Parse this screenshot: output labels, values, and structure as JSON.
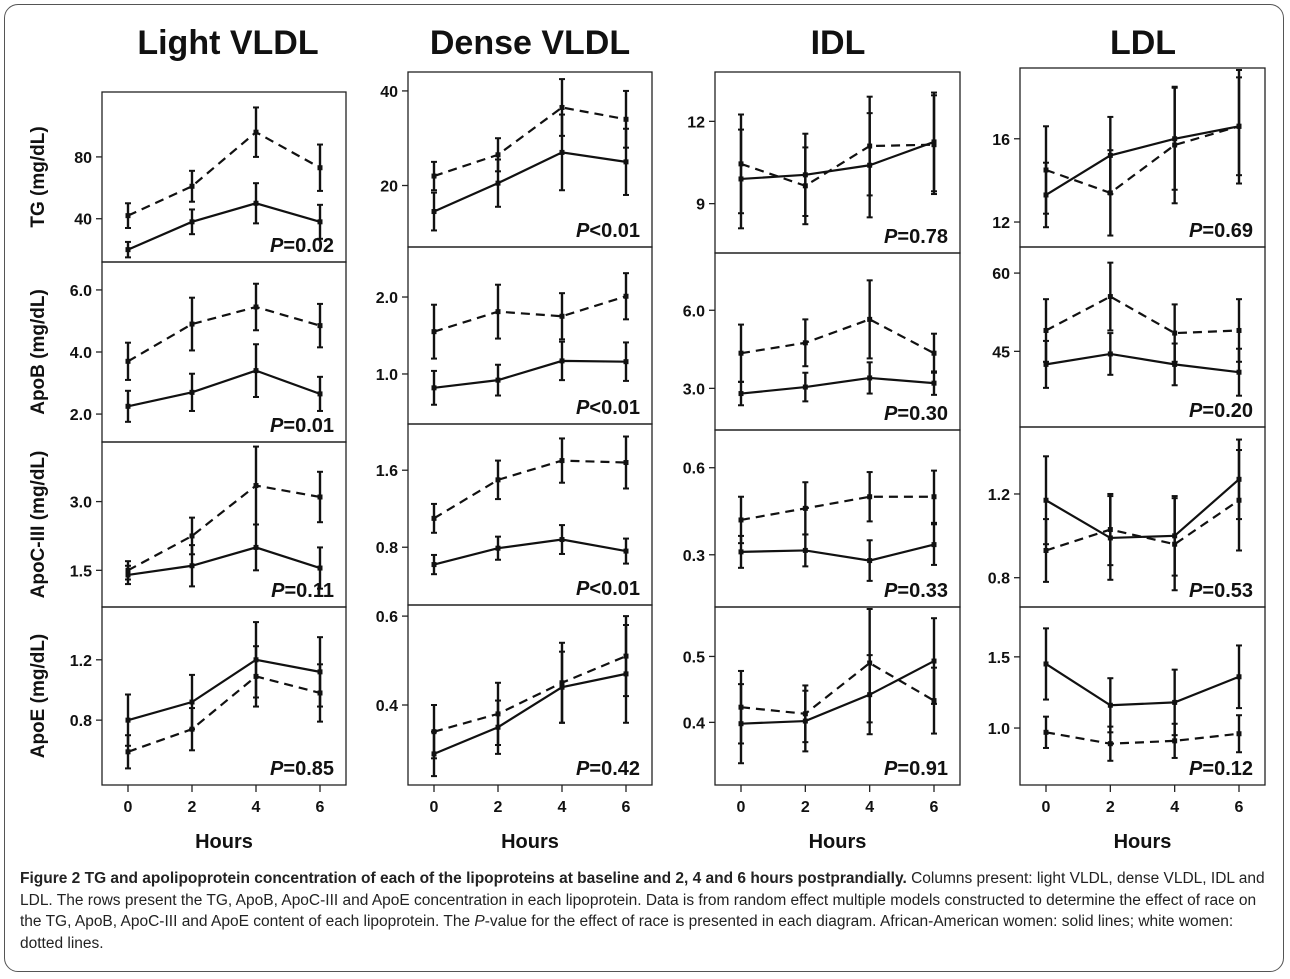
{
  "chart_data": {
    "type": "line",
    "columns": [
      "Light VLDL",
      "Dense VLDL",
      "IDL",
      "LDL"
    ],
    "rows": [
      "TG (mg/dL)",
      "ApoB (mg/dL)",
      "ApoC-III (mg/dL)",
      "ApoE (mg/dL)"
    ],
    "x": [
      0,
      2,
      4,
      6
    ],
    "xlabel": "Hours",
    "series_names": [
      "African-American women",
      "white women"
    ],
    "panels": [
      [
        {
          "row": 0,
          "col": 0,
          "ylim": [
            12,
            122
          ],
          "yticks": [
            40,
            80
          ],
          "solid": {
            "y": [
              20,
              38,
              50,
              38
            ],
            "err": [
              5,
              8,
              13,
              11
            ]
          },
          "dashed": {
            "y": [
              42,
              61,
              96,
              73
            ],
            "err": [
              8,
              10,
              16,
              15
            ]
          },
          "p": "=0.02"
        },
        {
          "row": 1,
          "col": 0,
          "ylim": [
            1.1,
            6.9
          ],
          "yticks": [
            2.0,
            4.0,
            6.0
          ],
          "solid": {
            "y": [
              2.25,
              2.7,
              3.4,
              2.65
            ],
            "err": [
              0.5,
              0.6,
              0.85,
              0.55
            ]
          },
          "dashed": {
            "y": [
              3.7,
              4.9,
              5.45,
              4.85
            ],
            "err": [
              0.6,
              0.85,
              0.75,
              0.7
            ]
          },
          "p": "=0.01"
        },
        {
          "row": 2,
          "col": 0,
          "ylim": [
            0.7,
            4.3
          ],
          "yticks": [
            1.5,
            3.0
          ],
          "solid": {
            "y": [
              1.4,
              1.6,
              2.0,
              1.55
            ],
            "err": [
              0.2,
              0.45,
              0.5,
              0.45
            ]
          },
          "dashed": {
            "y": [
              1.5,
              2.25,
              3.35,
              3.1
            ],
            "err": [
              0.2,
              0.4,
              0.85,
              0.55
            ]
          },
          "p": "=0.11"
        },
        {
          "row": 3,
          "col": 0,
          "ylim": [
            0.37,
            1.55
          ],
          "yticks": [
            0.8,
            1.2
          ],
          "solid": {
            "y": [
              0.8,
              0.92,
              1.2,
              1.12
            ],
            "err": [
              0.17,
              0.18,
              0.25,
              0.23
            ]
          },
          "dashed": {
            "y": [
              0.59,
              0.74,
              1.09,
              0.98
            ],
            "err": [
              0.11,
              0.14,
              0.2,
              0.19
            ]
          },
          "p": "=0.85"
        }
      ],
      [
        {
          "row": 0,
          "col": 1,
          "ylim": [
            7,
            44
          ],
          "yticks": [
            20,
            40
          ],
          "solid": {
            "y": [
              14.5,
              20.5,
              27,
              25
            ],
            "err": [
              4,
              5,
              8,
              7
            ]
          },
          "dashed": {
            "y": [
              22,
              26.5,
              36.5,
              34
            ],
            "err": [
              3,
              3.5,
              6,
              6
            ]
          },
          "p": "<0.01"
        },
        {
          "row": 1,
          "col": 1,
          "ylim": [
            0.35,
            2.65
          ],
          "yticks": [
            1.0,
            2.0
          ],
          "solid": {
            "y": [
              0.82,
              0.92,
              1.17,
              1.16
            ],
            "err": [
              0.22,
              0.2,
              0.25,
              0.25
            ]
          },
          "dashed": {
            "y": [
              1.55,
              1.81,
              1.75,
              2.01
            ],
            "err": [
              0.35,
              0.35,
              0.3,
              0.3
            ]
          },
          "p": "<0.01"
        },
        {
          "row": 2,
          "col": 1,
          "ylim": [
            0.2,
            2.08
          ],
          "yticks": [
            0.8,
            1.6
          ],
          "solid": {
            "y": [
              0.62,
              0.79,
              0.88,
              0.76
            ],
            "err": [
              0.1,
              0.12,
              0.15,
              0.13
            ]
          },
          "dashed": {
            "y": [
              1.1,
              1.5,
              1.7,
              1.68
            ],
            "err": [
              0.15,
              0.2,
              0.23,
              0.27
            ]
          },
          "p": "<0.01"
        },
        {
          "row": 3,
          "col": 1,
          "ylim": [
            0.22,
            0.625
          ],
          "yticks": [
            0.4,
            0.6
          ],
          "solid": {
            "y": [
              0.29,
              0.35,
              0.44,
              0.47
            ],
            "err": [
              0.05,
              0.06,
              0.08,
              0.11
            ]
          },
          "dashed": {
            "y": [
              0.34,
              0.38,
              0.45,
              0.51
            ],
            "err": [
              0.06,
              0.07,
              0.09,
              0.09
            ]
          },
          "p": "=0.42"
        }
      ],
      [
        {
          "row": 0,
          "col": 2,
          "ylim": [
            7.2,
            13.8
          ],
          "yticks": [
            9,
            12
          ],
          "solid": {
            "y": [
              9.9,
              10.05,
              10.4,
              11.25
            ],
            "err": [
              1.8,
              1.5,
              1.9,
              1.8
            ]
          },
          "dashed": {
            "y": [
              10.45,
              9.65,
              11.1,
              11.15
            ],
            "err": [
              1.8,
              1.4,
              1.8,
              1.8
            ]
          },
          "p": "=0.78"
        },
        {
          "row": 1,
          "col": 2,
          "ylim": [
            1.4,
            8.2
          ],
          "yticks": [
            3.0,
            6.0
          ],
          "solid": {
            "y": [
              2.8,
              3.05,
              3.4,
              3.2
            ],
            "err": [
              0.45,
              0.55,
              0.6,
              0.45
            ]
          },
          "dashed": {
            "y": [
              4.35,
              4.75,
              5.65,
              4.35
            ],
            "err": [
              1.1,
              0.9,
              1.5,
              0.75
            ]
          },
          "p": "=0.30"
        },
        {
          "row": 2,
          "col": 2,
          "ylim": [
            0.12,
            0.73
          ],
          "yticks": [
            0.3,
            0.6
          ],
          "solid": {
            "y": [
              0.31,
              0.315,
              0.28,
              0.335
            ],
            "err": [
              0.055,
              0.055,
              0.07,
              0.07
            ]
          },
          "dashed": {
            "y": [
              0.42,
              0.46,
              0.5,
              0.5
            ],
            "err": [
              0.08,
              0.09,
              0.085,
              0.09
            ]
          },
          "p": "=0.33"
        },
        {
          "row": 3,
          "col": 2,
          "ylim": [
            0.305,
            0.575
          ],
          "yticks": [
            0.4,
            0.5
          ],
          "solid": {
            "y": [
              0.398,
              0.402,
              0.442,
              0.493
            ],
            "err": [
              0.06,
              0.046,
              0.06,
              0.065
            ]
          },
          "dashed": {
            "y": [
              0.423,
              0.413,
              0.49,
              0.433
            ],
            "err": [
              0.055,
              0.043,
              0.09,
              0.05
            ]
          },
          "p": "=0.91"
        }
      ],
      [
        {
          "row": 0,
          "col": 3,
          "ylim": [
            10.8,
            19.4
          ],
          "yticks": [
            12,
            16
          ],
          "solid": {
            "y": [
              13.3,
              15.2,
              16.0,
              16.6
            ],
            "err": [
              1.55,
              1.85,
              2.45,
              2.35
            ]
          },
          "dashed": {
            "y": [
              14.5,
              13.4,
              15.7,
              16.6
            ],
            "err": [
              2.1,
              2.05,
              2.8,
              2.75
            ]
          },
          "p": "=0.69"
        },
        {
          "row": 1,
          "col": 3,
          "ylim": [
            30.5,
            65
          ],
          "yticks": [
            45,
            60
          ],
          "solid": {
            "y": [
              42.5,
              44.5,
              42.5,
              41
            ],
            "err": [
              4.5,
              4,
              4,
              4.5
            ]
          },
          "dashed": {
            "y": [
              49,
              55.5,
              48.5,
              49
            ],
            "err": [
              6,
              6.5,
              5.5,
              6
            ]
          },
          "p": "=0.20"
        },
        {
          "row": 2,
          "col": 3,
          "ylim": [
            0.66,
            1.52
          ],
          "yticks": [
            0.8,
            1.2
          ],
          "solid": {
            "y": [
              1.17,
              0.99,
              1.0,
              1.27
            ],
            "err": [
              0.21,
              0.2,
              0.19,
              0.19
            ]
          },
          "dashed": {
            "y": [
              0.93,
              1.03,
              0.96,
              1.17
            ],
            "err": [
              0.15,
              0.17,
              0.22,
              0.24
            ]
          },
          "p": "=0.53"
        },
        {
          "row": 3,
          "col": 3,
          "ylim": [
            0.6,
            1.85
          ],
          "yticks": [
            1.0,
            1.5
          ],
          "solid": {
            "y": [
              1.45,
              1.16,
              1.18,
              1.36
            ],
            "err": [
              0.25,
              0.19,
              0.23,
              0.22
            ]
          },
          "dashed": {
            "y": [
              0.97,
              0.89,
              0.91,
              0.96
            ],
            "err": [
              0.11,
              0.12,
              0.12,
              0.13
            ]
          },
          "p": "=0.12"
        }
      ]
    ]
  },
  "caption": {
    "bold": "Figure 2 TG and apolipoprotein concentration of each of the lipoproteins at baseline and 2, 4 and 6 hours postprandially.",
    "text1": " Columns present: light VLDL, dense VLDL, IDL and LDL. The rows present the TG, ApoB, ApoC-III and ApoE concentration in each lipoprotein. Data is from random effect multiple models constructed to determine the effect of race on the TG, ApoB, ApoC-III and ApoE content of each lipoprotein. The ",
    "pitalic": "P",
    "text2": "-value for the effect of race is presented in each diagram. African-American women: solid lines; white women: dotted lines."
  }
}
